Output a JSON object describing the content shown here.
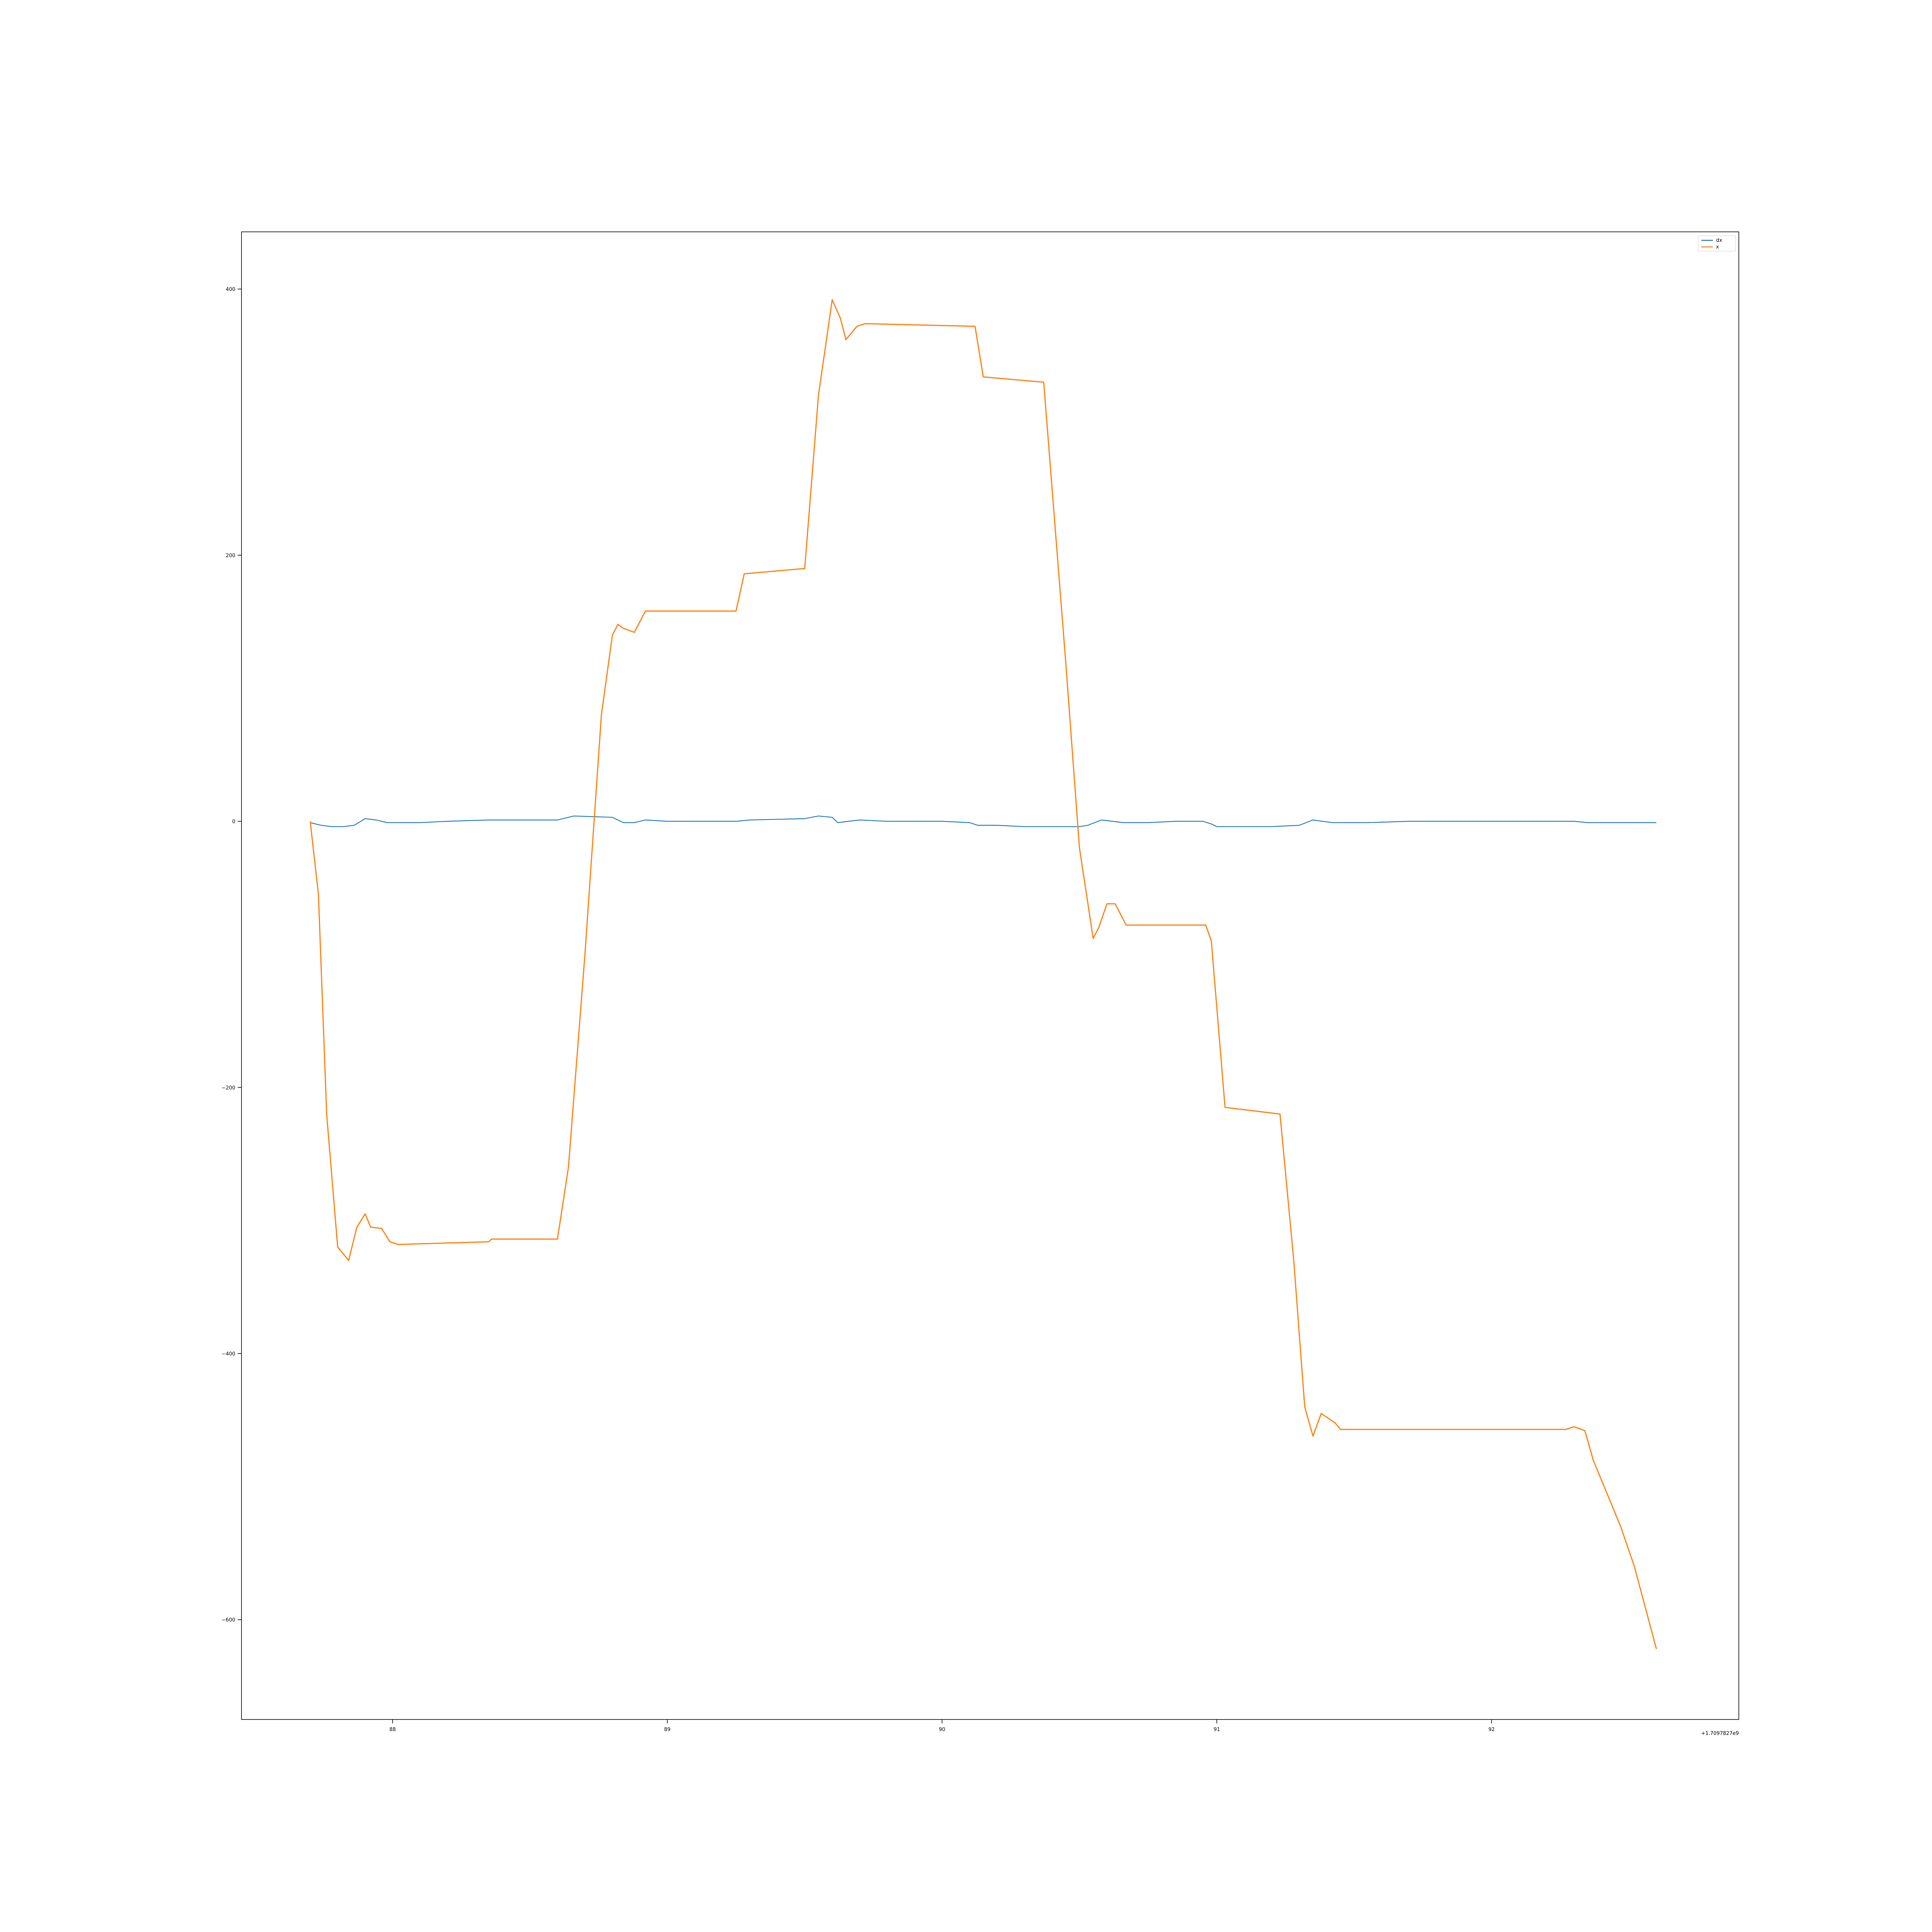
{
  "chart_data": {
    "type": "line",
    "title": "",
    "xlabel": "",
    "ylabel": "",
    "x_offset_label": "+1.7097827e9",
    "xlim": [
      87.45,
      92.9
    ],
    "ylim": [
      -675,
      443
    ],
    "xticks": [
      88,
      89,
      90,
      91,
      92
    ],
    "yticks": [
      -600,
      -400,
      -200,
      0,
      200,
      400
    ],
    "grid": false,
    "legend_position": "top-right",
    "series": [
      {
        "name": "dx",
        "color": "#1f77b4",
        "x": [
          87.7,
          87.74,
          87.78,
          87.82,
          87.86,
          87.9,
          87.94,
          87.98,
          88.1,
          88.2,
          88.35,
          88.6,
          88.66,
          88.8,
          88.84,
          88.88,
          88.92,
          89.0,
          89.1,
          89.25,
          89.3,
          89.5,
          89.55,
          89.6,
          89.62,
          89.66,
          89.7,
          89.8,
          90.0,
          90.1,
          90.13,
          90.2,
          90.3,
          90.4,
          90.5,
          90.53,
          90.58,
          90.62,
          90.66,
          90.75,
          90.85,
          90.95,
          90.98,
          91.0,
          91.2,
          91.3,
          91.35,
          91.42,
          91.55,
          91.7,
          91.9,
          92.1,
          92.3,
          92.35,
          92.5,
          92.6
        ],
        "y": [
          -1,
          -3,
          -4,
          -4,
          -3,
          2,
          1,
          -1,
          -1,
          0,
          1,
          1,
          4,
          3,
          -1,
          -1,
          1,
          0,
          0,
          0,
          1,
          2,
          4,
          3,
          -1,
          0,
          1,
          0,
          0,
          -1,
          -3,
          -3,
          -4,
          -4,
          -4,
          -3,
          1,
          0,
          -1,
          -1,
          0,
          0,
          -2,
          -4,
          -4,
          -3,
          1,
          -1,
          -1,
          0,
          0,
          0,
          0,
          -1,
          -1,
          -1
        ]
      },
      {
        "name": "x",
        "color": "#ff7f0e",
        "x": [
          87.7,
          87.73,
          87.76,
          87.8,
          87.84,
          87.87,
          87.9,
          87.92,
          87.96,
          87.99,
          88.02,
          88.35,
          88.36,
          88.6,
          88.64,
          88.7,
          88.76,
          88.8,
          88.82,
          88.84,
          88.88,
          88.92,
          89.25,
          89.28,
          89.5,
          89.55,
          89.6,
          89.63,
          89.65,
          89.69,
          89.72,
          90.12,
          90.15,
          90.37,
          90.45,
          90.5,
          90.55,
          90.57,
          90.6,
          90.63,
          90.67,
          90.96,
          90.98,
          91.03,
          91.23,
          91.28,
          91.32,
          91.35,
          91.38,
          91.43,
          91.45,
          91.55,
          92.27,
          92.3,
          92.34,
          92.37,
          92.42,
          92.47,
          92.52,
          92.6
        ],
        "y": [
          0,
          -55,
          -220,
          -320,
          -330,
          -305,
          -295,
          -305,
          -306,
          -316,
          -318,
          -316,
          -314,
          -314,
          -260,
          -100,
          80,
          140,
          148,
          145,
          142,
          158,
          158,
          186,
          190,
          320,
          392,
          378,
          362,
          372,
          374,
          372,
          334,
          330,
          120,
          -20,
          -88,
          -80,
          -62,
          -62,
          -78,
          -78,
          -90,
          -215,
          -220,
          -330,
          -440,
          -462,
          -445,
          -452,
          -457,
          -457,
          -457,
          -455,
          -458,
          -480,
          -505,
          -530,
          -560,
          -622
        ]
      }
    ]
  }
}
